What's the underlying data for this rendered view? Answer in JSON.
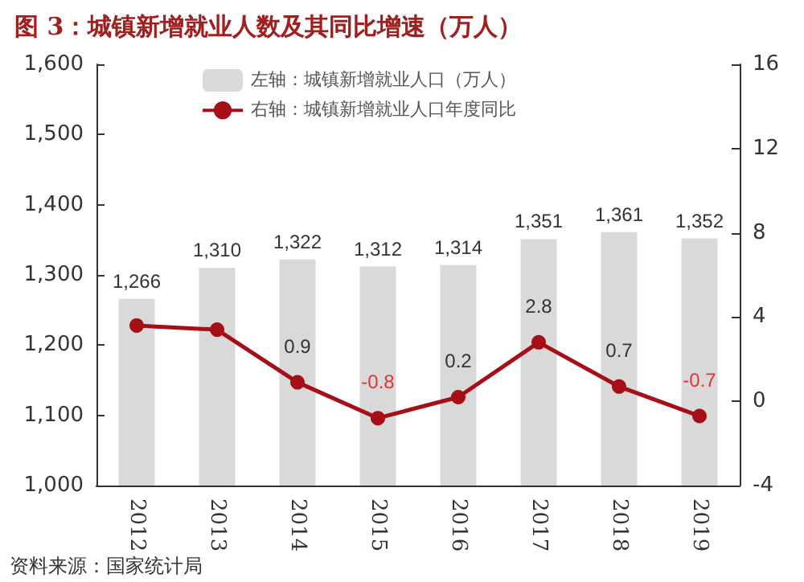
{
  "chart_data": {
    "type": "bar",
    "title": "图 3：城镇新增就业人数及其同比增速（万人）",
    "categories": [
      "2012",
      "2013",
      "2014",
      "2015",
      "2016",
      "2017",
      "2018",
      "2019"
    ],
    "series": [
      {
        "name": "左轴：城镇新增就业人口（万人）",
        "color": "#d9d9d9",
        "values": [
          1266,
          1310,
          1322,
          1312,
          1314,
          1351,
          1361,
          1352
        ],
        "value_labels": [
          "1,266",
          "1,310",
          "1,322",
          "1,312",
          "1,314",
          "1,351",
          "1,361",
          "1,352"
        ]
      },
      {
        "name": "右轴：城镇新增就业人口年度同比",
        "type": "line",
        "axis": "y2",
        "color": "#a50f15",
        "values": [
          3.6,
          3.4,
          0.9,
          -0.8,
          0.2,
          2.8,
          0.7,
          -0.7
        ],
        "value_labels": [
          null,
          null,
          "0.9",
          "-0.8",
          "0.2",
          "2.8",
          "0.7",
          "-0.7"
        ]
      }
    ],
    "ylim": [
      1000,
      1600
    ],
    "yticks": [
      {
        "value": 1000,
        "label": "1,000"
      },
      {
        "value": 1100,
        "label": "1,100"
      },
      {
        "value": 1200,
        "label": "1,200"
      },
      {
        "value": 1300,
        "label": "1,300"
      },
      {
        "value": 1400,
        "label": "1,400"
      },
      {
        "value": 1500,
        "label": "1,500"
      },
      {
        "value": 1600,
        "label": "1,600"
      }
    ],
    "y2lim": [
      -4,
      16
    ],
    "y2ticks": [
      -4,
      0,
      4,
      8,
      12,
      16
    ],
    "legend": "top",
    "marker": "circle",
    "grid": false,
    "annotations": [
      "资料来源：国家统计局"
    ]
  }
}
